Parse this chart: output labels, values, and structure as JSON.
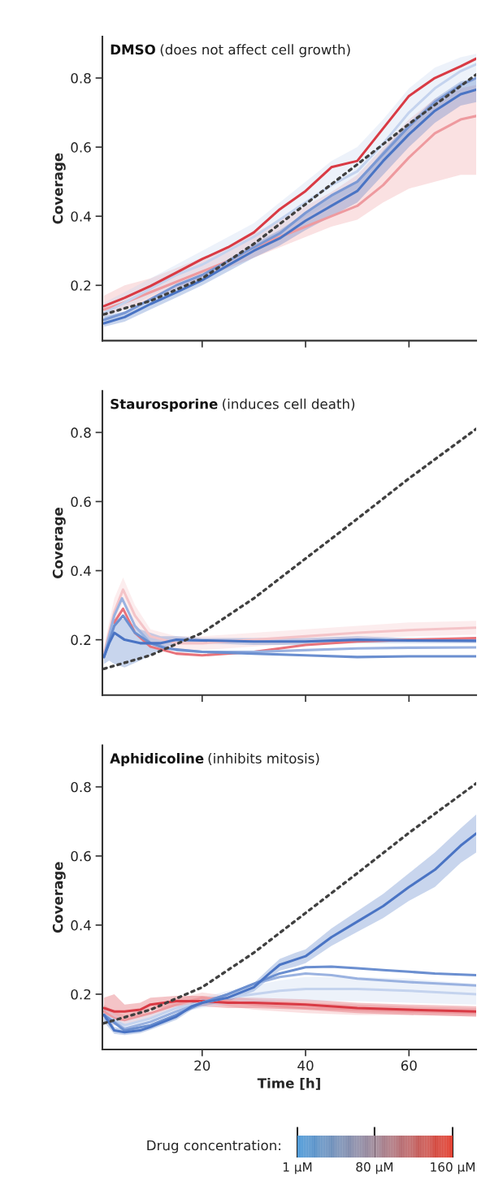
{
  "chart_data": [
    {
      "type": "line",
      "title": "DMSO",
      "subtitle": "(does not affect cell growth)",
      "ylabel": "Coverage",
      "xlim": [
        0.7,
        73
      ],
      "ylim": [
        0.04,
        0.92
      ],
      "xticks": [
        20,
        40,
        60
      ],
      "yticks": [
        0.2,
        0.4,
        0.6,
        0.8
      ],
      "tick_labels": "y",
      "series": [
        {
          "color": "#ee9a9f",
          "x": [
            1,
            5,
            10,
            15,
            20,
            25,
            30,
            35,
            40,
            45,
            50,
            55,
            60,
            65,
            70,
            73
          ],
          "values": [
            0.13,
            0.15,
            0.18,
            0.21,
            0.24,
            0.27,
            0.31,
            0.34,
            0.37,
            0.4,
            0.43,
            0.49,
            0.57,
            0.64,
            0.68,
            0.69
          ],
          "lower": [
            0.11,
            0.13,
            0.16,
            0.19,
            0.22,
            0.25,
            0.28,
            0.31,
            0.34,
            0.37,
            0.39,
            0.44,
            0.48,
            0.5,
            0.52,
            0.52
          ],
          "upper": [
            0.17,
            0.2,
            0.22,
            0.25,
            0.28,
            0.31,
            0.35,
            0.39,
            0.43,
            0.47,
            0.52,
            0.6,
            0.68,
            0.74,
            0.77,
            0.78
          ]
        },
        {
          "color": "#c4d3ee",
          "x": [
            1,
            5,
            10,
            15,
            20,
            25,
            30,
            35,
            40,
            45,
            50,
            55,
            60,
            65,
            70,
            73
          ],
          "values": [
            0.12,
            0.15,
            0.19,
            0.23,
            0.26,
            0.3,
            0.34,
            0.39,
            0.44,
            0.49,
            0.53,
            0.61,
            0.7,
            0.77,
            0.82,
            0.84
          ],
          "lower": [
            0.1,
            0.13,
            0.17,
            0.2,
            0.23,
            0.27,
            0.31,
            0.35,
            0.4,
            0.44,
            0.48,
            0.55,
            0.63,
            0.7,
            0.75,
            0.77
          ],
          "upper": [
            0.15,
            0.18,
            0.22,
            0.26,
            0.3,
            0.34,
            0.38,
            0.44,
            0.5,
            0.56,
            0.6,
            0.68,
            0.77,
            0.83,
            0.86,
            0.87
          ]
        },
        {
          "color": "#7a98d4",
          "x": [
            1,
            5,
            10,
            15,
            20,
            25,
            30,
            35,
            40,
            45,
            50,
            55,
            60,
            65,
            70,
            73
          ],
          "values": [
            0.1,
            0.12,
            0.16,
            0.2,
            0.23,
            0.27,
            0.31,
            0.35,
            0.41,
            0.46,
            0.5,
            0.58,
            0.66,
            0.73,
            0.78,
            0.8
          ]
        },
        {
          "color": "#d93a44",
          "x": [
            1,
            5,
            10,
            15,
            20,
            25,
            30,
            35,
            40,
            45,
            50,
            55,
            60,
            65,
            70,
            73
          ],
          "values": [
            0.14,
            0.164,
            0.198,
            0.237,
            0.276,
            0.31,
            0.353,
            0.42,
            0.473,
            0.542,
            0.56,
            0.654,
            0.748,
            0.8,
            0.834,
            0.856
          ]
        },
        {
          "color": "#4a74c4",
          "x": [
            1,
            5,
            10,
            15,
            20,
            25,
            30,
            35,
            40,
            45,
            50,
            55,
            60,
            65,
            70,
            73
          ],
          "values": [
            0.09,
            0.108,
            0.146,
            0.18,
            0.215,
            0.258,
            0.3,
            0.336,
            0.387,
            0.43,
            0.473,
            0.56,
            0.637,
            0.705,
            0.753,
            0.766
          ],
          "lower": [
            0.08,
            0.095,
            0.13,
            0.165,
            0.2,
            0.24,
            0.28,
            0.315,
            0.36,
            0.4,
            0.44,
            0.52,
            0.6,
            0.67,
            0.72,
            0.73
          ],
          "upper": [
            0.11,
            0.125,
            0.16,
            0.195,
            0.23,
            0.275,
            0.32,
            0.36,
            0.41,
            0.46,
            0.5,
            0.59,
            0.67,
            0.74,
            0.79,
            0.8
          ]
        },
        {
          "color": "#404040",
          "line_style": "dotted",
          "x": [
            1,
            10,
            20,
            30,
            40,
            50,
            60,
            73
          ],
          "values": [
            0.116,
            0.155,
            0.22,
            0.32,
            0.435,
            0.55,
            0.667,
            0.81
          ]
        }
      ]
    },
    {
      "type": "line",
      "title": "Staurosporine",
      "subtitle": "(induces cell death)",
      "ylabel": "Coverage",
      "xlim": [
        0.7,
        73
      ],
      "ylim": [
        0.04,
        0.92
      ],
      "xticks": [
        20,
        40,
        60
      ],
      "yticks": [
        0.2,
        0.4,
        0.6,
        0.8
      ],
      "tick_labels": "y",
      "series": [
        {
          "color": "#f4c4c8",
          "x": [
            1,
            3,
            4.7,
            7,
            10,
            15,
            20,
            30,
            40,
            50,
            60,
            73
          ],
          "values": [
            0.16,
            0.28,
            0.345,
            0.27,
            0.21,
            0.19,
            0.19,
            0.2,
            0.21,
            0.22,
            0.228,
            0.235
          ],
          "lower": [
            0.14,
            0.24,
            0.31,
            0.24,
            0.19,
            0.17,
            0.17,
            0.18,
            0.19,
            0.2,
            0.21,
            0.215
          ],
          "upper": [
            0.18,
            0.32,
            0.38,
            0.3,
            0.23,
            0.21,
            0.21,
            0.22,
            0.23,
            0.24,
            0.25,
            0.255
          ]
        },
        {
          "color": "#e8737b",
          "x": [
            3,
            4.7,
            7,
            10,
            15,
            20,
            30,
            40,
            50,
            60,
            73
          ],
          "values": [
            0.25,
            0.29,
            0.22,
            0.18,
            0.16,
            0.155,
            0.165,
            0.185,
            0.195,
            0.2,
            0.205
          ]
        },
        {
          "color": "#9ab2e0",
          "x": [
            1,
            3,
            4.5,
            7,
            10,
            15,
            20,
            30,
            40,
            50,
            60,
            73
          ],
          "values": [
            0.15,
            0.27,
            0.32,
            0.24,
            0.19,
            0.17,
            0.165,
            0.165,
            0.17,
            0.175,
            0.177,
            0.178
          ]
        },
        {
          "color": "#6b8fd0",
          "x": [
            1,
            3,
            4.7,
            7,
            10,
            13,
            20,
            30,
            40,
            50,
            60,
            73
          ],
          "values": [
            0.15,
            0.24,
            0.27,
            0.22,
            0.19,
            0.175,
            0.165,
            0.16,
            0.155,
            0.15,
            0.152,
            0.152
          ]
        },
        {
          "color": "#4a74c4",
          "x": [
            1,
            2,
            3,
            5,
            8,
            12,
            15,
            20,
            30,
            40,
            50,
            60,
            73
          ],
          "values": [
            0.15,
            0.19,
            0.22,
            0.2,
            0.19,
            0.19,
            0.2,
            0.198,
            0.195,
            0.195,
            0.2,
            0.198,
            0.197
          ],
          "lower": [
            0.13,
            0.14,
            0.13,
            0.12,
            0.14,
            0.17,
            0.19,
            0.19,
            0.185,
            0.185,
            0.19,
            0.19,
            0.19
          ],
          "upper": [
            0.17,
            0.22,
            0.26,
            0.26,
            0.23,
            0.21,
            0.21,
            0.205,
            0.205,
            0.205,
            0.21,
            0.205,
            0.205
          ]
        },
        {
          "color": "#404040",
          "line_style": "dotted",
          "x": [
            1,
            10,
            20,
            30,
            40,
            50,
            60,
            73
          ],
          "values": [
            0.116,
            0.155,
            0.22,
            0.32,
            0.435,
            0.55,
            0.667,
            0.81
          ]
        }
      ]
    },
    {
      "type": "line",
      "title": "Aphidicoline",
      "subtitle": "(inhibits mitosis)",
      "xlabel": "Time [h]",
      "ylabel": "Coverage",
      "xlim": [
        0.7,
        73
      ],
      "ylim": [
        0.04,
        0.92
      ],
      "xticks": [
        20,
        40,
        60
      ],
      "yticks": [
        0.2,
        0.4,
        0.6,
        0.8
      ],
      "clabel": "Drug concentration:",
      "clim": [
        1,
        160
      ],
      "cticks": [
        {
          "value": 1,
          "label": "1 µM"
        },
        {
          "value": 80,
          "label": "80 µM"
        },
        {
          "value": 160,
          "label": "160 µM"
        }
      ],
      "series": [
        {
          "color": "#ee9a9f",
          "x": [
            1,
            3,
            5,
            10,
            15,
            20,
            25,
            30,
            40,
            50,
            60,
            73
          ],
          "values": [
            0.15,
            0.13,
            0.125,
            0.145,
            0.17,
            0.19,
            0.18,
            0.17,
            0.16,
            0.155,
            0.15,
            0.145
          ],
          "lower": [
            0.13,
            0.11,
            0.11,
            0.13,
            0.155,
            0.175,
            0.165,
            0.155,
            0.145,
            0.14,
            0.14,
            0.135
          ],
          "upper": [
            0.17,
            0.15,
            0.14,
            0.16,
            0.185,
            0.205,
            0.195,
            0.185,
            0.175,
            0.17,
            0.165,
            0.16
          ]
        },
        {
          "color": "#d93a44",
          "x": [
            1,
            3,
            5,
            8,
            10,
            15,
            20,
            25,
            30,
            40,
            50,
            60,
            73
          ],
          "values": [
            0.16,
            0.15,
            0.15,
            0.155,
            0.17,
            0.18,
            0.18,
            0.175,
            0.175,
            0.17,
            0.16,
            0.155,
            0.15
          ],
          "lower": [
            0.14,
            0.13,
            0.13,
            0.14,
            0.155,
            0.165,
            0.165,
            0.16,
            0.16,
            0.155,
            0.145,
            0.14,
            0.135
          ],
          "upper": [
            0.19,
            0.2,
            0.17,
            0.175,
            0.19,
            0.195,
            0.195,
            0.19,
            0.19,
            0.185,
            0.175,
            0.17,
            0.165
          ]
        },
        {
          "color": "#c4d3ee",
          "x": [
            1,
            5,
            10,
            15,
            20,
            25,
            30,
            35,
            40,
            50,
            60,
            73
          ],
          "values": [
            0.14,
            0.11,
            0.13,
            0.16,
            0.175,
            0.19,
            0.2,
            0.21,
            0.215,
            0.215,
            0.21,
            0.2
          ],
          "lower": [
            0.12,
            0.1,
            0.12,
            0.145,
            0.16,
            0.17,
            0.175,
            0.18,
            0.18,
            0.18,
            0.175,
            0.17
          ],
          "upper": [
            0.16,
            0.125,
            0.145,
            0.175,
            0.19,
            0.21,
            0.225,
            0.24,
            0.25,
            0.25,
            0.245,
            0.23
          ]
        },
        {
          "color": "#9ab2e0",
          "x": [
            1,
            5,
            10,
            15,
            20,
            25,
            30,
            35,
            40,
            45,
            50,
            60,
            73
          ],
          "values": [
            0.14,
            0.1,
            0.12,
            0.15,
            0.175,
            0.2,
            0.23,
            0.25,
            0.26,
            0.255,
            0.245,
            0.235,
            0.225
          ]
        },
        {
          "color": "#6b8fd0",
          "x": [
            1,
            5,
            10,
            15,
            20,
            25,
            30,
            35,
            40,
            45,
            50,
            55,
            60,
            65,
            73
          ],
          "values": [
            0.14,
            0.095,
            0.11,
            0.14,
            0.175,
            0.2,
            0.23,
            0.26,
            0.278,
            0.28,
            0.275,
            0.27,
            0.265,
            0.26,
            0.255
          ]
        },
        {
          "color": "#4a74c4",
          "x": [
            1,
            3,
            5,
            8,
            10,
            15,
            18,
            20,
            25,
            30,
            33,
            35,
            38,
            40,
            45,
            50,
            55,
            60,
            65,
            70,
            73
          ],
          "values": [
            0.14,
            0.095,
            0.09,
            0.095,
            0.105,
            0.135,
            0.165,
            0.175,
            0.19,
            0.22,
            0.26,
            0.285,
            0.3,
            0.31,
            0.365,
            0.41,
            0.455,
            0.51,
            0.56,
            0.63,
            0.665
          ],
          "lower": [
            0.12,
            0.085,
            0.082,
            0.087,
            0.097,
            0.126,
            0.155,
            0.165,
            0.18,
            0.208,
            0.245,
            0.268,
            0.28,
            0.29,
            0.34,
            0.38,
            0.42,
            0.47,
            0.51,
            0.58,
            0.61
          ],
          "upper": [
            0.16,
            0.105,
            0.098,
            0.103,
            0.113,
            0.144,
            0.175,
            0.185,
            0.2,
            0.232,
            0.275,
            0.302,
            0.32,
            0.33,
            0.39,
            0.44,
            0.49,
            0.55,
            0.61,
            0.68,
            0.72
          ]
        },
        {
          "color": "#404040",
          "line_style": "dotted",
          "x": [
            1,
            10,
            20,
            30,
            40,
            50,
            60,
            73
          ],
          "values": [
            0.116,
            0.155,
            0.22,
            0.32,
            0.435,
            0.55,
            0.667,
            0.81
          ]
        }
      ]
    }
  ]
}
